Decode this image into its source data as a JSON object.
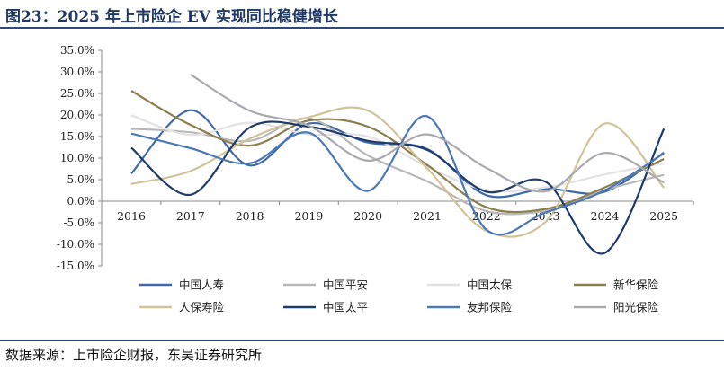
{
  "header": {
    "title": "图23：2025 年上市险企 EV 实现同比稳健增长"
  },
  "footer": {
    "source": "数据来源：上市险企财报，东吴证券研究所"
  },
  "chart_data": {
    "type": "line",
    "x": [
      "2016",
      "2017",
      "2018",
      "2019",
      "2020",
      "2021",
      "2022",
      "2023",
      "2024",
      "2025"
    ],
    "ylim": [
      -15,
      35
    ],
    "yticks": [
      -15,
      -10,
      -5,
      0,
      5,
      10,
      15,
      20,
      25,
      30,
      35
    ],
    "ytick_labels": [
      "-15.0%",
      "-10.0%",
      "-5.0%",
      "0.0%",
      "5.0%",
      "10.0%",
      "15.0%",
      "20.0%",
      "25.0%",
      "30.0%",
      "35.0%"
    ],
    "grid": false,
    "legend_position": "bottom",
    "smooth": true,
    "series": [
      {
        "name": "中国人寿",
        "color": "#3f6aa8",
        "values": [
          6.4,
          21.1,
          8.3,
          18.0,
          13.6,
          12.1,
          1.4,
          2.9,
          2.2,
          11.3
        ]
      },
      {
        "name": "中国平安",
        "color": "#b8b8b8",
        "values": [
          16.8,
          16.0,
          14.0,
          19.2,
          10.6,
          4.6,
          -2.3,
          -2.2,
          2.6,
          6.1
        ]
      },
      {
        "name": "中国太保",
        "color": "#e2e2e2",
        "values": [
          19.9,
          15.4,
          18.2,
          15.5,
          15.0,
          8.0,
          2.6,
          3.2,
          6.2,
          8.8
        ]
      },
      {
        "name": "新华保险",
        "color": "#8c7e4e",
        "values": [
          25.6,
          17.7,
          12.9,
          18.7,
          17.3,
          8.4,
          -1.4,
          -1.8,
          3.2,
          9.8
        ]
      },
      {
        "name": "人保寿险",
        "color": "#d1c29a",
        "values": [
          4.0,
          7.0,
          14.5,
          19.5,
          21.0,
          7.6,
          -6.9,
          -4.8,
          18.0,
          3.1
        ]
      },
      {
        "name": "中国太平",
        "color": "#1d3b6b",
        "values": [
          12.4,
          1.5,
          17.1,
          17.3,
          14.0,
          11.9,
          2.2,
          4.5,
          -12.0,
          16.8
        ]
      },
      {
        "name": "友邦保险",
        "color": "#4b79b8",
        "values": [
          15.7,
          12.3,
          8.8,
          15.9,
          2.4,
          19.7,
          -6.6,
          -2.6,
          2.5,
          11.1
        ]
      },
      {
        "name": "阳光保险",
        "color": "#a9a9b0",
        "values": [
          null,
          29.4,
          21.0,
          17.5,
          9.4,
          15.5,
          7.7,
          2.3,
          11.2,
          4.3
        ]
      }
    ]
  }
}
